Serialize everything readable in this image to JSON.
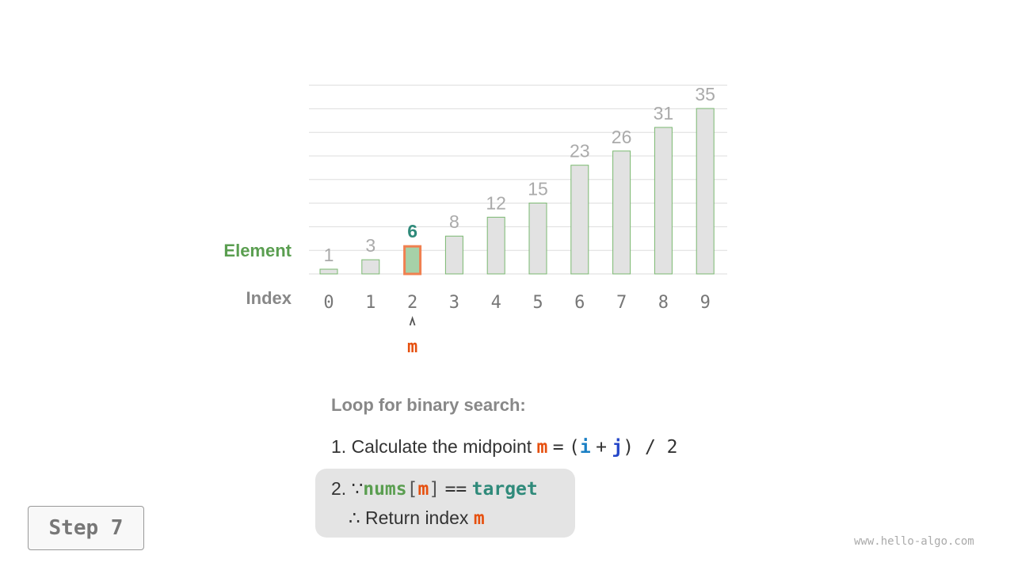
{
  "chart_data": {
    "type": "bar",
    "categories": [
      "0",
      "1",
      "2",
      "3",
      "4",
      "5",
      "6",
      "7",
      "8",
      "9"
    ],
    "values": [
      1,
      3,
      6,
      8,
      12,
      15,
      23,
      26,
      31,
      35
    ],
    "highlight_index": 2,
    "row_labels": {
      "element": "Element",
      "index": "Index"
    },
    "pointer_label": "m",
    "colors": {
      "bar_fill": "#e2e2e2",
      "bar_stroke": "#7ab870",
      "highlight_fill": "#a6d1a8",
      "highlight_stroke": "#f08050",
      "pointer": "#e6500f",
      "element_label": "#5a9e50",
      "highlight_value": "#2f8a7a"
    }
  },
  "explanation": {
    "heading": "Loop for binary search:",
    "line1_prefix": "1. Calculate the midpoint",
    "line1_m": "m",
    "line1_eq": "=",
    "line1_open": "(",
    "line1_i": "i",
    "line1_plus": "+",
    "line1_j": "j",
    "line1_rest": ") / 2",
    "line2_prefix": "2. ∵",
    "line2_nums": "nums",
    "line2_lb": "[",
    "line2_m": "m",
    "line2_rb": "]",
    "line2_eq": "==",
    "line2_target": "target",
    "line3_prefix": "∴ Return index",
    "line3_m": "m"
  },
  "step_label": "Step 7",
  "watermark": "www.hello-algo.com"
}
